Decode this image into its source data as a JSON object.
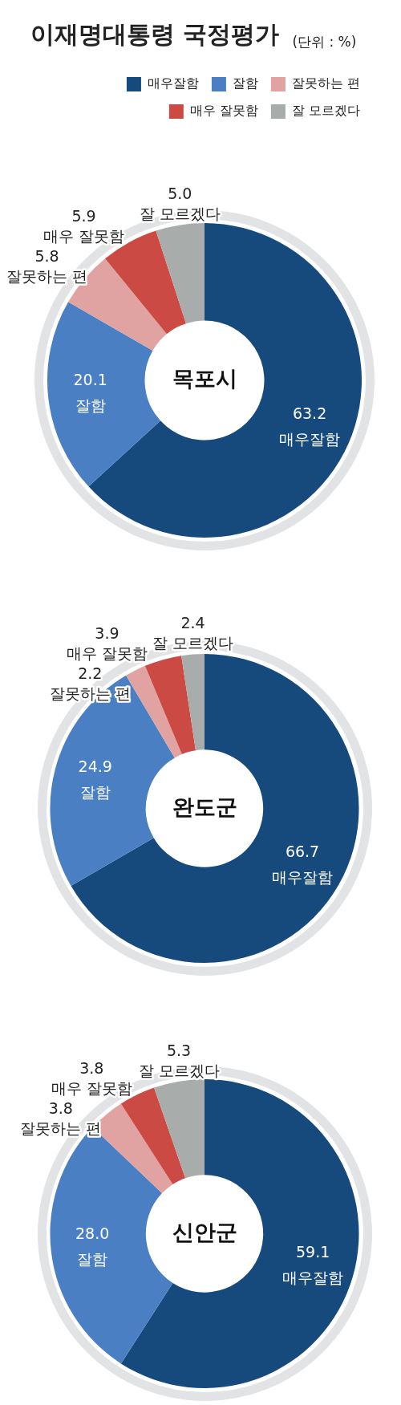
{
  "chart_data": [
    {
      "type": "other",
      "title": "이재명대통령 국정평가",
      "subtitle": "(단위 : %)"
    },
    {
      "type": "donut",
      "title": "목포시",
      "categories": [
        "매우잘함",
        "잘함",
        "잘못하는 편",
        "매우 잘못함",
        "잘 모르겠다"
      ],
      "values": [
        63.2,
        20.1,
        5.8,
        5.9,
        5.0
      ],
      "value_labels": [
        "63.2",
        "20.1",
        "5.8",
        "5.9",
        "5.0"
      ],
      "colors": [
        "#174a7c",
        "#4a80c3",
        "#e0a3a1",
        "#cc4a44",
        "#a8adab"
      ],
      "legend": "top right"
    },
    {
      "type": "donut",
      "title": "완도군",
      "categories": [
        "매우잘함",
        "잘함",
        "잘못하는 편",
        "매우 잘못함",
        "잘 모르겠다"
      ],
      "values": [
        66.7,
        24.9,
        2.2,
        3.9,
        2.4
      ],
      "colors": [
        "#174a7c",
        "#4a80c3",
        "#e0a3a1",
        "#cc4a44",
        "#a8adab"
      ],
      "data_labels": true
    },
    {
      "type": "donut",
      "title": "신안군",
      "categories": [
        "매우잘함",
        "잘함",
        "잘못하는 편",
        "매우 잘못함",
        "잘 모르겠다"
      ],
      "values": [
        59.1,
        28.0,
        3.8,
        3.8,
        5.3
      ],
      "value_labels": [
        "59.1",
        "28.0",
        "3.8",
        "3.8",
        "5.3"
      ],
      "colors": [
        "#174a7c",
        "#4a80c3",
        "#e0a3a1",
        "#cc4a44",
        "#a8adab"
      ]
    }
  ]
}
